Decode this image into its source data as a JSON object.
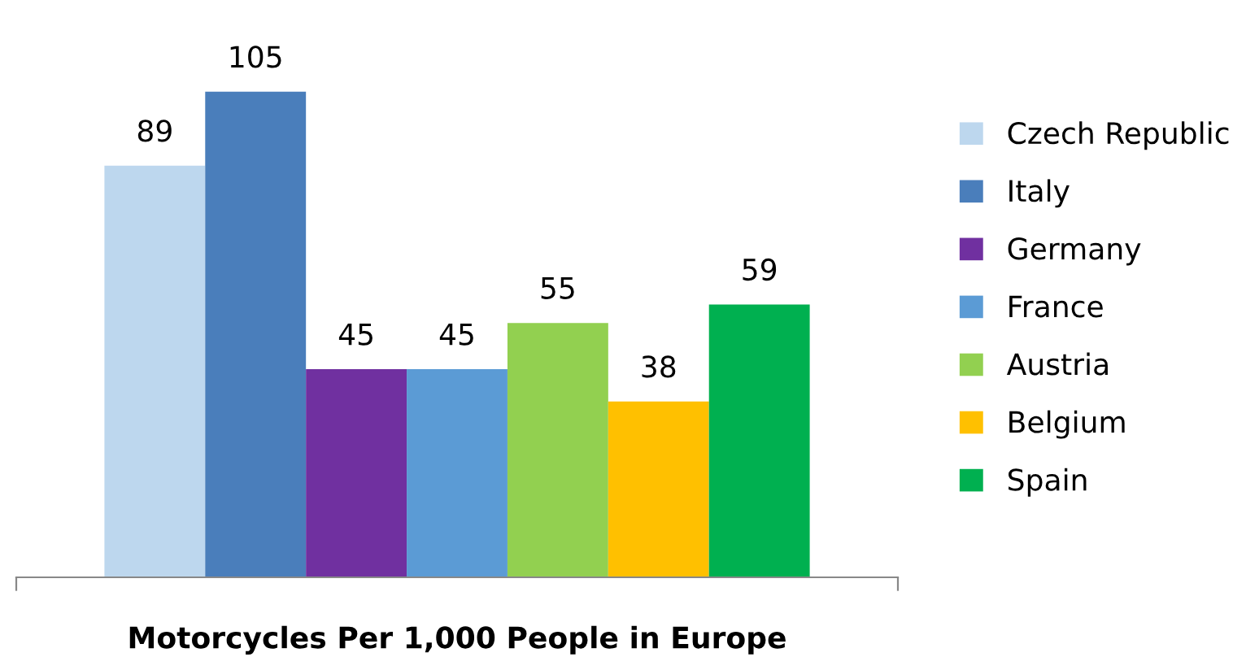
{
  "chart_data": {
    "type": "bar",
    "xlabel": "Motorcycles Per 1,000 People in Europe",
    "categories": [
      null
    ],
    "series": [
      {
        "name": "Czech Republic",
        "color": "#bdd7ee",
        "values": [
          89
        ]
      },
      {
        "name": "Italy",
        "color": "#4a7ebb",
        "values": [
          105
        ]
      },
      {
        "name": "Germany",
        "color": "#7030a0",
        "values": [
          45
        ]
      },
      {
        "name": "France",
        "color": "#5b9bd5",
        "values": [
          45
        ]
      },
      {
        "name": "Austria",
        "color": "#92d050",
        "values": [
          55
        ]
      },
      {
        "name": "Belgium",
        "color": "#ffc000",
        "values": [
          38
        ]
      },
      {
        "name": "Spain",
        "color": "#00b050",
        "values": [
          59
        ]
      }
    ],
    "data_labels": true,
    "legend": "right",
    "grid": false
  }
}
